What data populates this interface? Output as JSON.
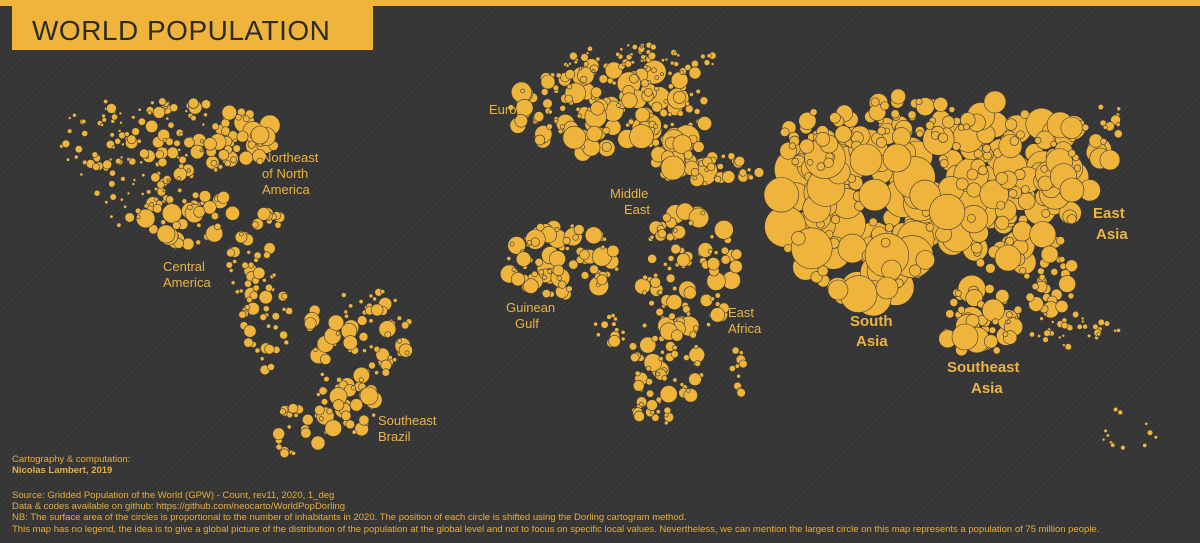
{
  "title": "WORLD POPULATION",
  "colors": {
    "background": "#353535",
    "accent": "#F0B43C",
    "circle_fill": "#EFB43B",
    "circle_stroke": "#3a3a3a",
    "label_color": "#EBB445",
    "title_text": "#2c2c2c"
  },
  "regions": {
    "northeast_na": [
      "Northeast",
      "of North",
      "America"
    ],
    "central_america": [
      "Central",
      "America"
    ],
    "southeast_brazil": [
      "Southeast",
      "Brazil"
    ],
    "europe": [
      "Europe"
    ],
    "middle_east": [
      "Middle",
      "East"
    ],
    "guinean_gulf": [
      "Guinean",
      "Gulf"
    ],
    "east_africa": [
      "East",
      "Africa"
    ],
    "south_asia": [
      "South",
      "Asia"
    ],
    "southeast_asia": [
      "Southeast",
      "Asia"
    ],
    "east_asia": [
      "East",
      "Asia"
    ]
  },
  "credits": {
    "line1": "Cartography & computation:",
    "author": "Nicolas Lambert, 2019"
  },
  "notes": [
    "Source: Gridded Population of the World (GPW) - Count, rev11, 2020, 1_deg",
    "Data & codes available on github: https://github.com/neocarto/WorldPopDorling",
    "NB: The surface area of the circles is proportional to the number of inhabitants in 2020. The position of each circle is shifted using the Dorling cartogram method.",
    "This map has no legend, the idea is to give a global picture of the distribution of the population at the global level and not to focus on specific local values. Nevertheless, we can mention the largest circle on this map represents a population of 75 million people."
  ]
}
